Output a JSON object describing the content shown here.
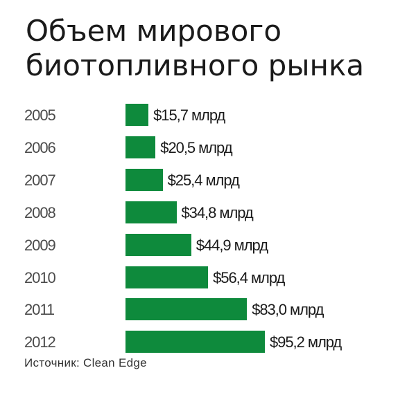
{
  "chart_data": {
    "type": "bar",
    "orientation": "horizontal",
    "title": "Объем мирового биотопливного рынка",
    "title_lines": [
      "Объем мирового",
      "биотопливного рынка"
    ],
    "categories": [
      "2005",
      "2006",
      "2007",
      "2008",
      "2009",
      "2010",
      "2011",
      "2012"
    ],
    "values": [
      15.7,
      20.5,
      25.4,
      34.8,
      44.9,
      56.4,
      83.0,
      95.2
    ],
    "value_labels": [
      "$15,7 млрд",
      "$20,5 млрд",
      "$25,4 млрд",
      "$34,8 млрд",
      "$44,9 млрд",
      "$56,4 млрд",
      "$83,0 млрд",
      "$95,2 млрд"
    ],
    "currency": "$",
    "unit": "млрд",
    "xlim": [
      0,
      95.2
    ],
    "source": "Источник: Clean Edge",
    "bar_color": "#0e8a3c",
    "background_color": "#ffffff",
    "grid": false,
    "legend": false
  }
}
